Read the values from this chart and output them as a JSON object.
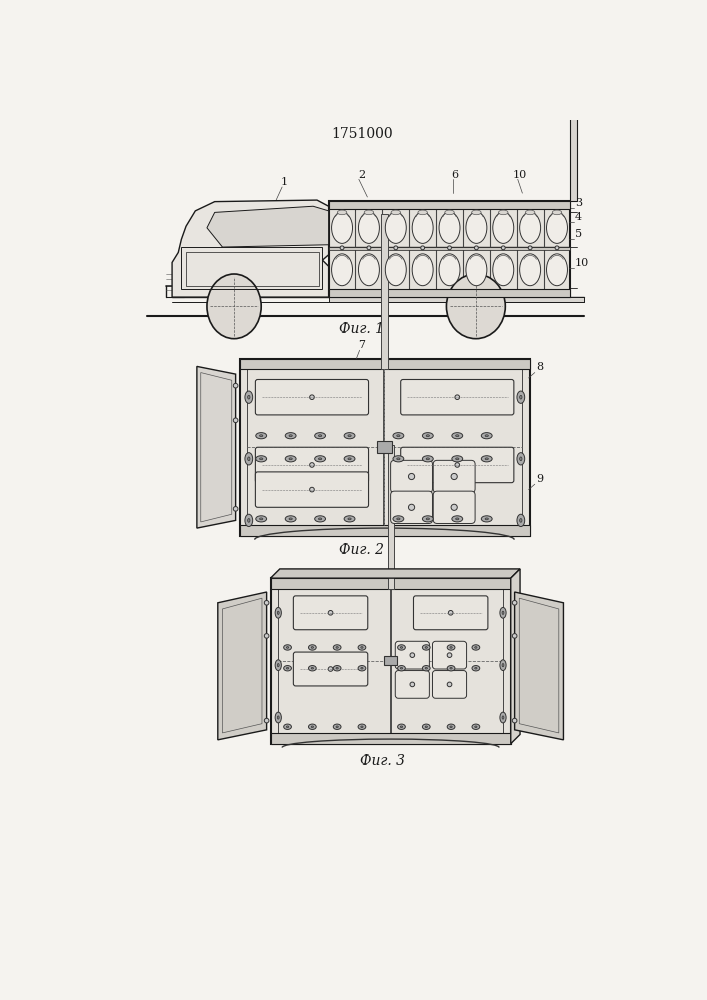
{
  "title": "1751000",
  "bg_color": "#f5f3ef",
  "line_color": "#1a1a1a",
  "fig1_caption": "Фиг. 1",
  "fig2_caption": "Фиг. 2",
  "fig3_caption": "Фиг. 3"
}
